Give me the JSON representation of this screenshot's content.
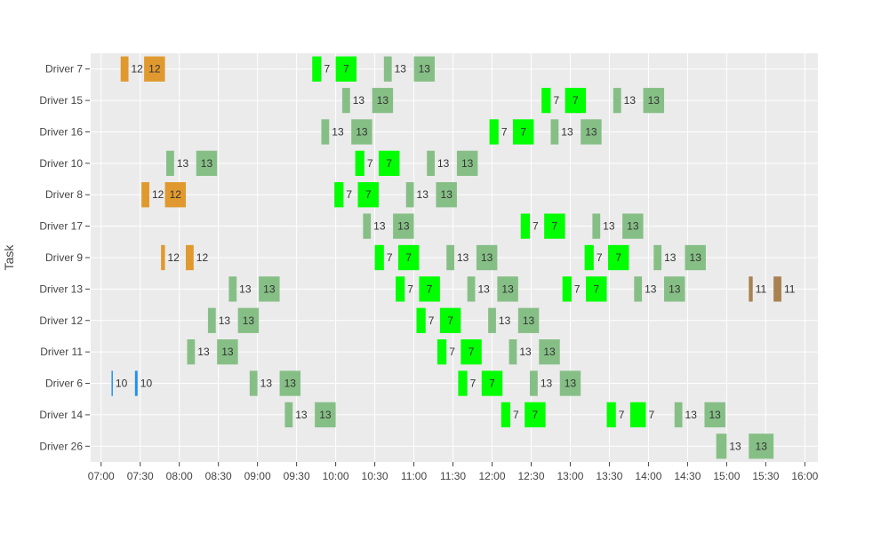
{
  "chart_data": {
    "type": "gantt",
    "ylabel": "Task",
    "x_ticks": [
      "07:00",
      "07:30",
      "08:00",
      "08:30",
      "09:00",
      "09:30",
      "10:00",
      "10:30",
      "11:00",
      "11:30",
      "12:00",
      "12:30",
      "13:00",
      "13:30",
      "14:00",
      "14:30",
      "15:00",
      "15:30",
      "16:00"
    ],
    "x_range": [
      "06:52",
      "16:10"
    ],
    "grid": true,
    "colors": {
      "7": "#00ff00",
      "10": "#1f8ff0",
      "11": "#a98252",
      "12": "#e0992e",
      "13": "#86bf86",
      "plot_bg": "#ebebeb",
      "grid": "#ffffff"
    },
    "tasks": [
      {
        "name": "Driver 7",
        "segments": [
          {
            "label": "12",
            "start": "07:15",
            "end": "07:21"
          },
          {
            "label": "12",
            "start": "07:33",
            "end": "07:49"
          },
          {
            "label": "7",
            "start": "09:42",
            "end": "09:49"
          },
          {
            "label": "7",
            "start": "10:00",
            "end": "10:16"
          },
          {
            "label": "13",
            "start": "10:37",
            "end": "10:43"
          },
          {
            "label": "13",
            "start": "11:00",
            "end": "11:16"
          }
        ]
      },
      {
        "name": "Driver 15",
        "segments": [
          {
            "label": "13",
            "start": "10:05",
            "end": "10:11"
          },
          {
            "label": "13",
            "start": "10:28",
            "end": "10:44"
          },
          {
            "label": "7",
            "start": "12:38",
            "end": "12:45"
          },
          {
            "label": "7",
            "start": "12:56",
            "end": "13:12"
          },
          {
            "label": "13",
            "start": "13:33",
            "end": "13:39"
          },
          {
            "label": "13",
            "start": "13:56",
            "end": "14:12"
          }
        ]
      },
      {
        "name": "Driver 16",
        "segments": [
          {
            "label": "13",
            "start": "09:49",
            "end": "09:55"
          },
          {
            "label": "13",
            "start": "10:12",
            "end": "10:28"
          },
          {
            "label": "7",
            "start": "11:58",
            "end": "12:05"
          },
          {
            "label": "7",
            "start": "12:16",
            "end": "12:32"
          },
          {
            "label": "13",
            "start": "12:45",
            "end": "12:51"
          },
          {
            "label": "13",
            "start": "13:08",
            "end": "13:24"
          }
        ]
      },
      {
        "name": "Driver 10",
        "segments": [
          {
            "label": "13",
            "start": "07:50",
            "end": "07:56"
          },
          {
            "label": "13",
            "start": "08:13",
            "end": "08:29"
          },
          {
            "label": "7",
            "start": "10:15",
            "end": "10:22"
          },
          {
            "label": "7",
            "start": "10:33",
            "end": "10:49"
          },
          {
            "label": "13",
            "start": "11:10",
            "end": "11:16"
          },
          {
            "label": "13",
            "start": "11:33",
            "end": "11:49"
          }
        ]
      },
      {
        "name": "Driver 8",
        "segments": [
          {
            "label": "12",
            "start": "07:31",
            "end": "07:37"
          },
          {
            "label": "12",
            "start": "07:49",
            "end": "08:05"
          },
          {
            "label": "7",
            "start": "09:59",
            "end": "10:06"
          },
          {
            "label": "7",
            "start": "10:17",
            "end": "10:33"
          },
          {
            "label": "13",
            "start": "10:54",
            "end": "11:00"
          },
          {
            "label": "13",
            "start": "11:17",
            "end": "11:33"
          }
        ]
      },
      {
        "name": "Driver 17",
        "segments": [
          {
            "label": "13",
            "start": "10:21",
            "end": "10:27"
          },
          {
            "label": "13",
            "start": "10:44",
            "end": "11:00"
          },
          {
            "label": "7",
            "start": "12:22",
            "end": "12:29"
          },
          {
            "label": "7",
            "start": "12:40",
            "end": "12:56"
          },
          {
            "label": "13",
            "start": "13:17",
            "end": "13:23"
          },
          {
            "label": "13",
            "start": "13:40",
            "end": "13:56"
          }
        ]
      },
      {
        "name": "Driver 9",
        "segments": [
          {
            "label": "12",
            "start": "07:46",
            "end": "07:49"
          },
          {
            "label": "12",
            "start": "08:05",
            "end": "08:11"
          },
          {
            "label": "7",
            "start": "10:30",
            "end": "10:37"
          },
          {
            "label": "7",
            "start": "10:48",
            "end": "11:04"
          },
          {
            "label": "13",
            "start": "11:25",
            "end": "11:31"
          },
          {
            "label": "13",
            "start": "11:48",
            "end": "12:04"
          },
          {
            "label": "7",
            "start": "13:11",
            "end": "13:18"
          },
          {
            "label": "7",
            "start": "13:29",
            "end": "13:45"
          },
          {
            "label": "13",
            "start": "14:04",
            "end": "14:10"
          },
          {
            "label": "13",
            "start": "14:28",
            "end": "14:44"
          }
        ]
      },
      {
        "name": "Driver 13",
        "segments": [
          {
            "label": "13",
            "start": "08:38",
            "end": "08:44"
          },
          {
            "label": "13",
            "start": "09:01",
            "end": "09:17"
          },
          {
            "label": "7",
            "start": "10:46",
            "end": "10:53"
          },
          {
            "label": "7",
            "start": "11:04",
            "end": "11:20"
          },
          {
            "label": "13",
            "start": "11:41",
            "end": "11:47"
          },
          {
            "label": "13",
            "start": "12:04",
            "end": "12:20"
          },
          {
            "label": "7",
            "start": "12:54",
            "end": "13:01"
          },
          {
            "label": "7",
            "start": "13:12",
            "end": "13:28"
          },
          {
            "label": "13",
            "start": "13:49",
            "end": "13:55"
          },
          {
            "label": "13",
            "start": "14:12",
            "end": "14:28"
          },
          {
            "label": "11",
            "start": "15:17",
            "end": "15:20"
          },
          {
            "label": "11",
            "start": "15:36",
            "end": "15:42"
          }
        ]
      },
      {
        "name": "Driver 12",
        "segments": [
          {
            "label": "13",
            "start": "08:22",
            "end": "08:28"
          },
          {
            "label": "13",
            "start": "08:45",
            "end": "09:01"
          },
          {
            "label": "7",
            "start": "11:02",
            "end": "11:09"
          },
          {
            "label": "7",
            "start": "11:20",
            "end": "11:36"
          },
          {
            "label": "13",
            "start": "11:57",
            "end": "12:03"
          },
          {
            "label": "13",
            "start": "12:20",
            "end": "12:36"
          }
        ]
      },
      {
        "name": "Driver 11",
        "segments": [
          {
            "label": "13",
            "start": "08:06",
            "end": "08:12"
          },
          {
            "label": "13",
            "start": "08:29",
            "end": "08:45"
          },
          {
            "label": "7",
            "start": "11:18",
            "end": "11:25"
          },
          {
            "label": "7",
            "start": "11:36",
            "end": "11:52"
          },
          {
            "label": "13",
            "start": "12:13",
            "end": "12:19"
          },
          {
            "label": "13",
            "start": "12:36",
            "end": "12:52"
          }
        ]
      },
      {
        "name": "Driver 6",
        "segments": [
          {
            "label": "10",
            "start": "07:08",
            "end": "07:09"
          },
          {
            "label": "10",
            "start": "07:26",
            "end": "07:28"
          },
          {
            "label": "13",
            "start": "08:54",
            "end": "09:00"
          },
          {
            "label": "13",
            "start": "09:17",
            "end": "09:33"
          },
          {
            "label": "7",
            "start": "11:34",
            "end": "11:41"
          },
          {
            "label": "7",
            "start": "11:52",
            "end": "12:08"
          },
          {
            "label": "13",
            "start": "12:29",
            "end": "12:35"
          },
          {
            "label": "13",
            "start": "12:52",
            "end": "13:08"
          }
        ]
      },
      {
        "name": "Driver 14",
        "segments": [
          {
            "label": "13",
            "start": "09:21",
            "end": "09:27"
          },
          {
            "label": "13",
            "start": "09:44",
            "end": "10:00"
          },
          {
            "label": "7",
            "start": "12:07",
            "end": "12:14"
          },
          {
            "label": "7",
            "start": "12:25",
            "end": "12:41"
          },
          {
            "label": "7",
            "start": "13:28",
            "end": "13:35"
          },
          {
            "label": "7",
            "start": "13:46",
            "end": "13:58"
          },
          {
            "label": "13",
            "start": "14:20",
            "end": "14:26"
          },
          {
            "label": "13",
            "start": "14:43",
            "end": "14:59"
          }
        ]
      },
      {
        "name": "Driver 26",
        "segments": [
          {
            "label": "13",
            "start": "14:52",
            "end": "15:00"
          },
          {
            "label": "13",
            "start": "15:17",
            "end": "15:36"
          }
        ]
      }
    ]
  }
}
